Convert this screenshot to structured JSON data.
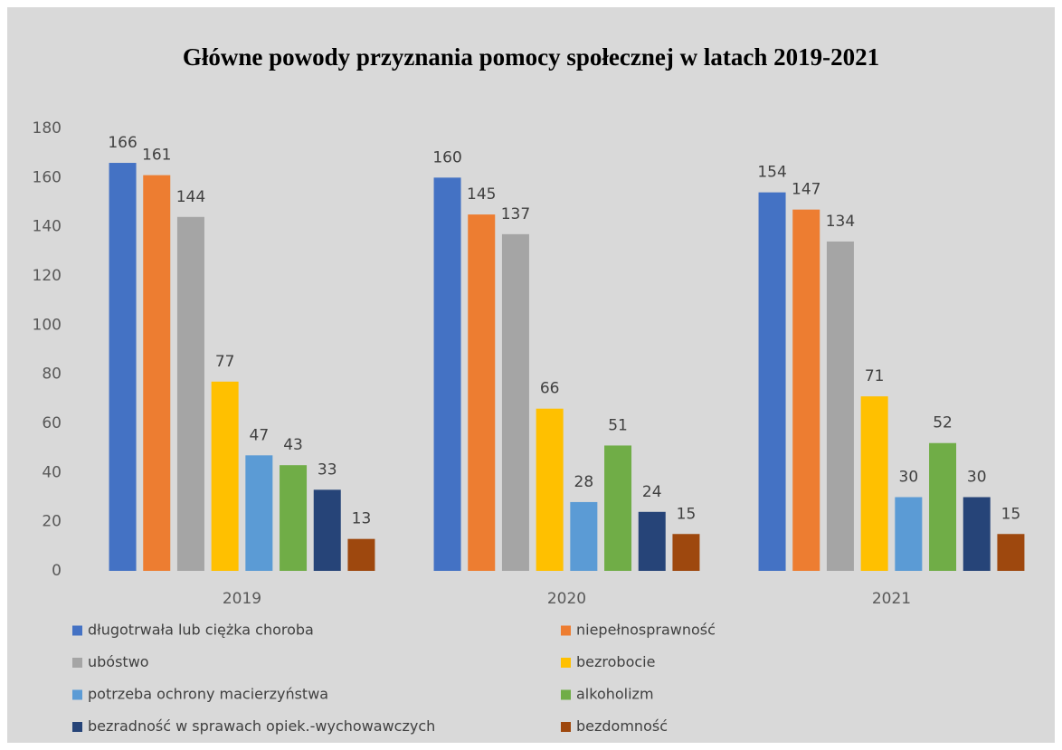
{
  "chart_data": {
    "type": "bar",
    "title": "Główne powody przyznania pomocy społecznej w latach 2019-2021",
    "categories": [
      "2019",
      "2020",
      "2021"
    ],
    "series": [
      {
        "name": "długotrwała lub ciężka choroba",
        "color": "#4472c4",
        "values": [
          166,
          160,
          154
        ]
      },
      {
        "name": "niepełnosprawność",
        "color": "#ed7d31",
        "values": [
          161,
          145,
          147
        ]
      },
      {
        "name": "ubóstwo",
        "color": "#a5a5a5",
        "values": [
          144,
          137,
          134
        ]
      },
      {
        "name": "bezrobocie",
        "color": "#ffc000",
        "values": [
          77,
          66,
          71
        ]
      },
      {
        "name": "potrzeba ochrony macierzyństwa",
        "color": "#5b9bd5",
        "values": [
          47,
          28,
          30
        ]
      },
      {
        "name": "alkoholizm",
        "color": "#70ad47",
        "values": [
          43,
          51,
          52
        ]
      },
      {
        "name": "bezradność w sprawach opiek.-wychowawczych",
        "color": "#264478",
        "values": [
          33,
          24,
          30
        ]
      },
      {
        "name": "bezdomność",
        "color": "#9e480e",
        "values": [
          13,
          15,
          15
        ]
      }
    ],
    "ylim": [
      0,
      180
    ],
    "yticks": [
      0,
      20,
      40,
      60,
      80,
      100,
      120,
      140,
      160,
      180
    ],
    "grid": false,
    "legend": "bottom"
  }
}
